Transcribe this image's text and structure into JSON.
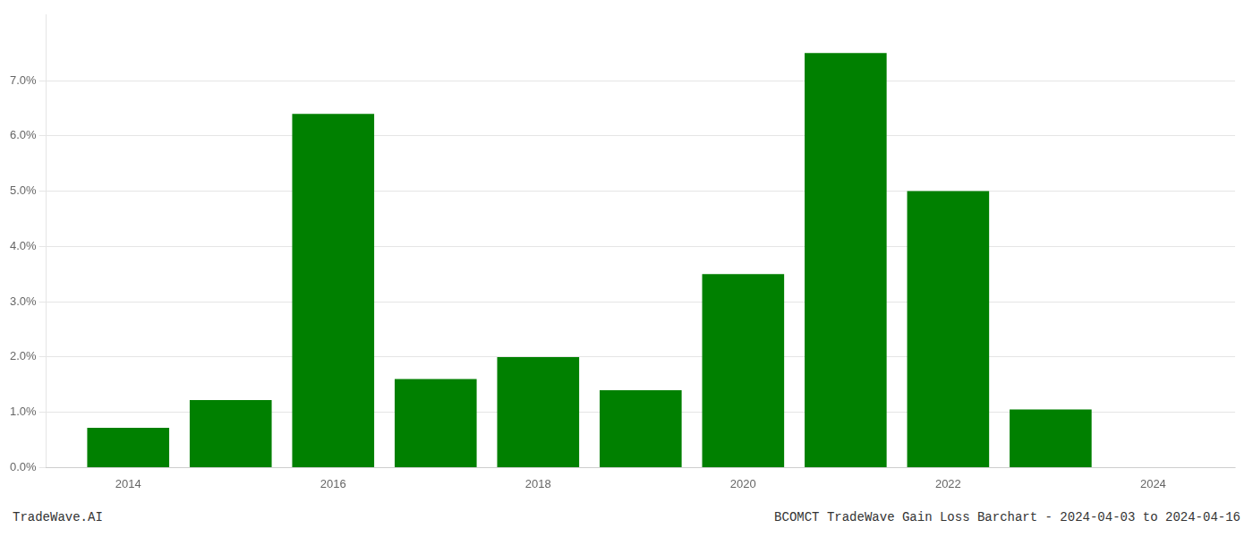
{
  "chart_data": {
    "type": "bar",
    "x": [
      2014,
      2015,
      2016,
      2017,
      2018,
      2019,
      2020,
      2021,
      2022,
      2023,
      2024
    ],
    "values": [
      0.0072,
      0.0122,
      0.064,
      0.016,
      0.02,
      0.014,
      0.035,
      0.075,
      0.05,
      0.0105,
      0.0
    ],
    "color": "#008000",
    "xlim": [
      2013.2,
      2024.8
    ],
    "xticks": [
      2014,
      2016,
      2018,
      2020,
      2022,
      2024
    ],
    "ylim": [
      0,
      0.082
    ],
    "yticks": [
      {
        "value": 0.0,
        "label": "0.0%"
      },
      {
        "value": 0.01,
        "label": "1.0%"
      },
      {
        "value": 0.02,
        "label": "2.0%"
      },
      {
        "value": 0.03,
        "label": "3.0%"
      },
      {
        "value": 0.04,
        "label": "4.0%"
      },
      {
        "value": 0.05,
        "label": "5.0%"
      },
      {
        "value": 0.06,
        "label": "6.0%"
      },
      {
        "value": 0.07,
        "label": "7.0%"
      }
    ],
    "grid": "y",
    "annotations": [
      "TradeWave.AI",
      "BCOMCT TradeWave Gain Loss Barchart - 2024-04-03 to 2024-04-16"
    ]
  }
}
